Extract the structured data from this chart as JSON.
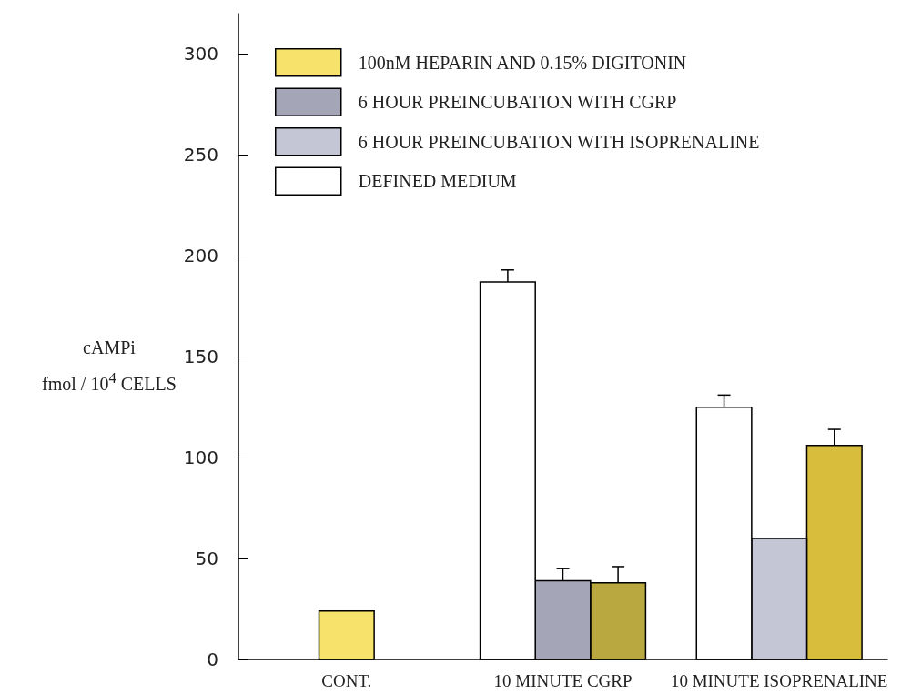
{
  "chart_data": {
    "type": "bar",
    "ylabel": "cAMPi\nfmol / 10$^{4}$ CELLS",
    "categories": [
      "CONT.",
      "10 MINUTE CGRP",
      "10 MINUTE ISOPRENALINE"
    ],
    "series": [
      {
        "name": "100nM HEPARIN AND 0.15% DIGITONIN",
        "color": "#f7e26b",
        "colors": [
          "#f7e26b",
          "#b9a840",
          "#d8bc3c"
        ],
        "values": [
          24,
          38,
          106
        ],
        "errors": [
          null,
          [
            38,
            46
          ],
          [
            106,
            114
          ]
        ]
      },
      {
        "name": "6 HOUR PREINCUBATION WITH CGRP",
        "color": "#a4a6b8",
        "values": [
          null,
          39,
          null
        ],
        "errors": [
          null,
          [
            39,
            45
          ],
          null
        ]
      },
      {
        "name": "6 HOUR PREINCUBATION WITH ISOPRENALINE",
        "color": "#c4c6d6",
        "values": [
          null,
          null,
          60
        ],
        "errors": [
          null,
          null,
          null
        ]
      },
      {
        "name": "DEFINED MEDIUM",
        "color": "#ffffff",
        "values": [
          null,
          187,
          125
        ],
        "errors": [
          null,
          [
            187,
            193
          ],
          [
            125,
            131
          ]
        ]
      }
    ],
    "ylim": [
      0,
      320
    ],
    "yticks": [
      0,
      50,
      100,
      150,
      200,
      250,
      300
    ],
    "grid": false,
    "legend": "top left"
  }
}
